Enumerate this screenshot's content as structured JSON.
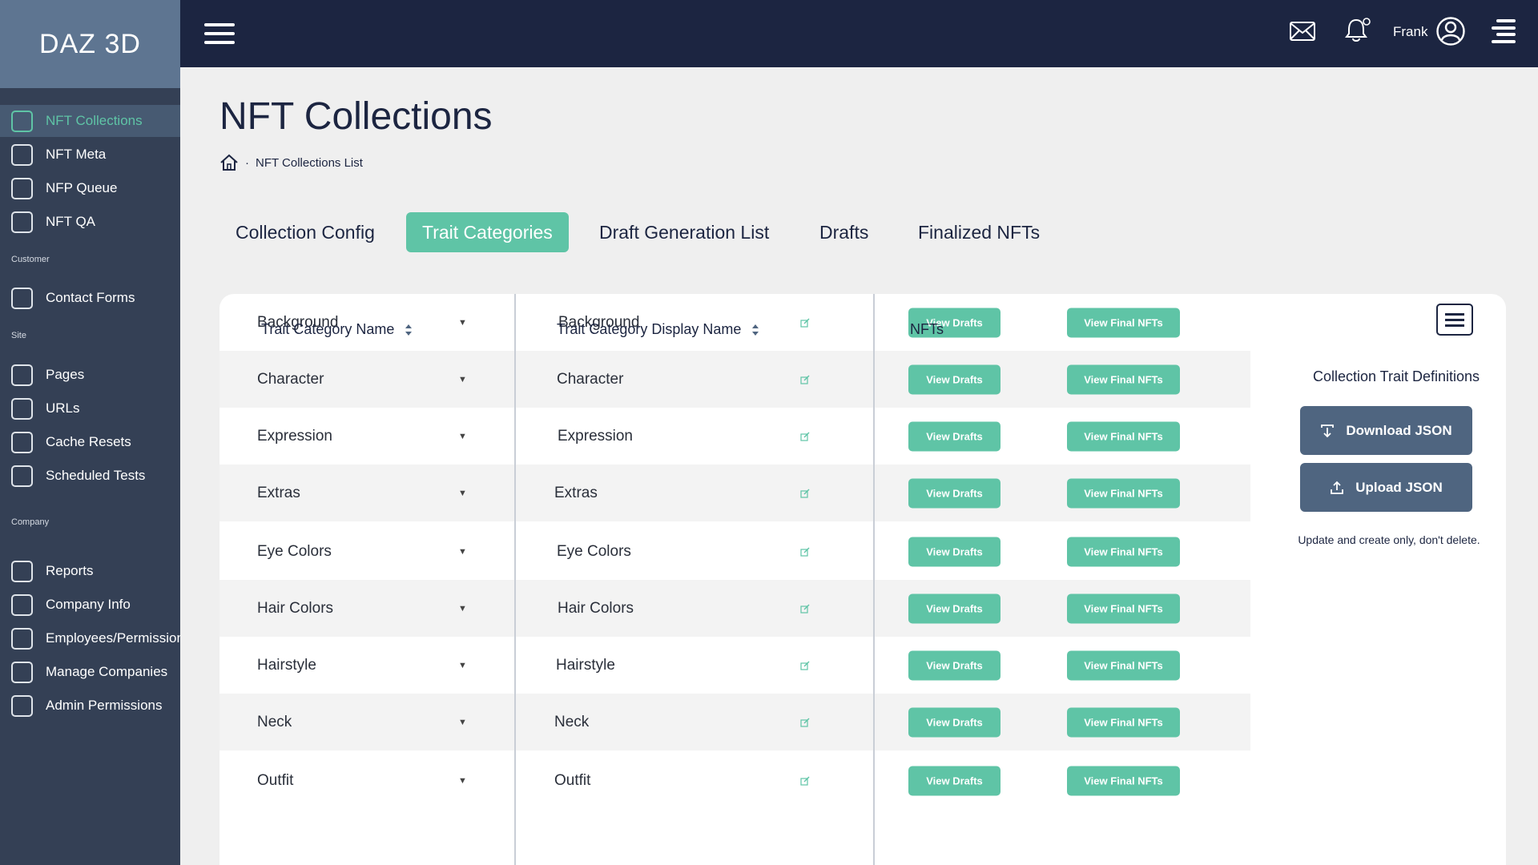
{
  "brand": {
    "name": "DAZ 3D"
  },
  "sidebar": {
    "items": [
      {
        "label": "NFT Collections",
        "active": true
      },
      {
        "label": "NFT Meta"
      },
      {
        "label": "NFP Queue"
      },
      {
        "label": "NFT QA"
      },
      {
        "label": "Contact Forms"
      },
      {
        "label": "Pages"
      },
      {
        "label": "URLs"
      },
      {
        "label": "Cache Resets"
      },
      {
        "label": "Scheduled Tests"
      },
      {
        "label": "Reports"
      },
      {
        "label": "Company Info"
      },
      {
        "label": "Employees/Permissions"
      },
      {
        "label": "Manage Companies"
      },
      {
        "label": "Admin Permissions"
      }
    ],
    "sections": {
      "customer": "Customer",
      "site": "Site",
      "company": "Company"
    }
  },
  "topbar": {
    "user_name": "Frank",
    "icons": [
      "menu-icon",
      "mail-icon",
      "bell-icon",
      "user-circle-icon",
      "menu-right-icon"
    ]
  },
  "page": {
    "title": "NFT Collections",
    "breadcrumb": {
      "separator": "·",
      "current": "NFT Collections List"
    }
  },
  "tabs": [
    {
      "label": "Collection Config"
    },
    {
      "label": "Trait Categories",
      "active": true
    },
    {
      "label": "Draft Generation List"
    },
    {
      "label": "Drafts"
    },
    {
      "label": "Finalized NFTs"
    }
  ],
  "table": {
    "headers": {
      "name": "Trait Category Name",
      "display_name": "Trait Category Display Name",
      "nfts": "NFTs"
    },
    "view_drafts_label": "View Drafts",
    "view_final_label": "View Final NFTs",
    "rows": [
      {
        "name": "Background",
        "display": "Background"
      },
      {
        "name": "Character",
        "display": "Character"
      },
      {
        "name": "Expression",
        "display": "Expression"
      },
      {
        "name": "Extras",
        "display": "Extras"
      },
      {
        "name": "Eye Colors",
        "display": "Eye Colors"
      },
      {
        "name": "Hair Colors",
        "display": "Hair Colors"
      },
      {
        "name": "Hairstyle",
        "display": "Hairstyle"
      },
      {
        "name": "Neck",
        "display": "Neck"
      },
      {
        "name": "Outfit",
        "display": "Outfit"
      }
    ]
  },
  "panel": {
    "title": "Collection Trait Definitions",
    "download_label": "Download JSON",
    "upload_label": "Upload JSON",
    "note": "Update and create only, don't delete."
  },
  "colors": {
    "accent": "#5fc4a6",
    "sidebar_bg": "#344055",
    "brand_bg": "#5e7591",
    "topbar_bg": "#1c2541",
    "dark_button": "#4f6580"
  }
}
